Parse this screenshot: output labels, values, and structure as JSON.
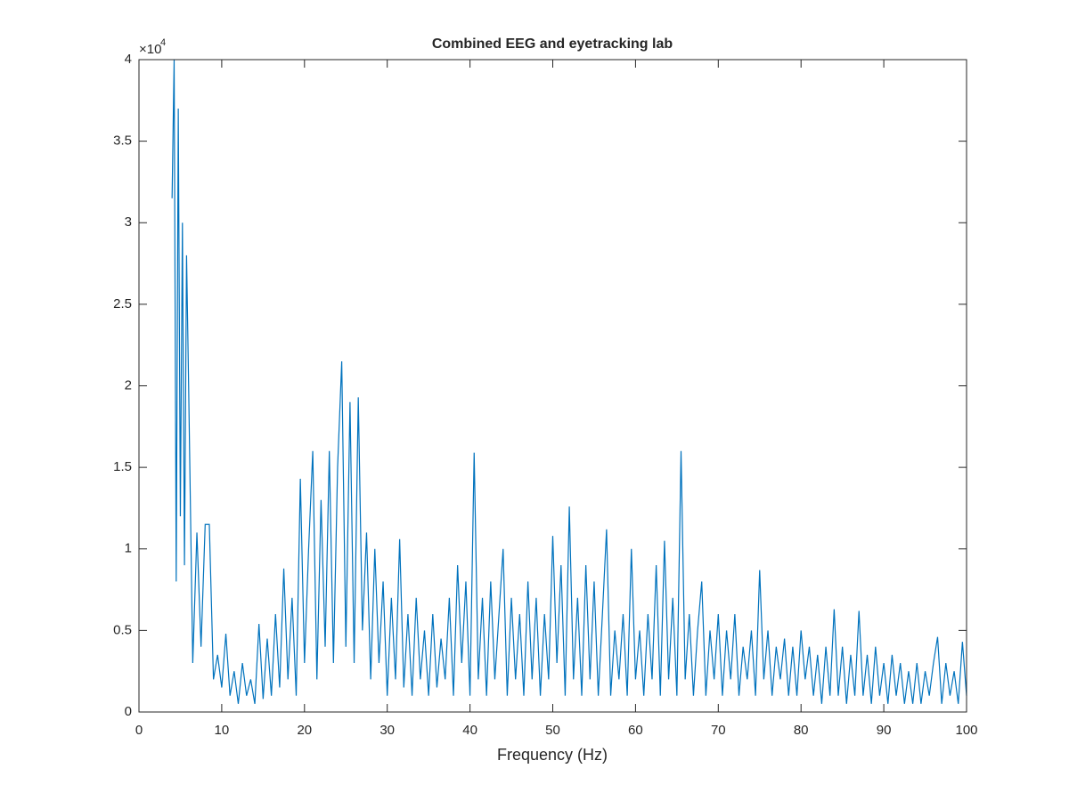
{
  "chart_data": {
    "type": "line",
    "title": "Combined EEG and eyetracking lab",
    "xlabel": "Frequency (Hz)",
    "y_multiplier": {
      "base": "×10",
      "exponent": "4"
    },
    "xlim": [
      0,
      100
    ],
    "xticks": [
      0,
      10,
      20,
      30,
      40,
      50,
      60,
      70,
      80,
      90,
      100
    ],
    "ylim": [
      0,
      4
    ],
    "yticks": [
      0,
      0.5,
      1,
      1.5,
      2,
      2.5,
      3,
      3.5,
      4
    ],
    "grid": false,
    "box": true,
    "x": [
      4,
      4.25,
      4.5,
      4.75,
      5,
      5.25,
      5.5,
      5.75,
      6,
      6.5,
      7,
      7.5,
      8,
      8.5,
      9,
      9.5,
      10,
      10.5,
      11,
      11.5,
      12,
      12.5,
      13,
      13.5,
      14,
      14.5,
      15,
      15.5,
      16,
      16.5,
      17,
      17.5,
      18,
      18.5,
      19,
      19.5,
      20,
      20.5,
      21,
      21.5,
      22,
      22.5,
      23,
      23.5,
      24,
      24.5,
      25,
      25.5,
      26,
      26.5,
      27,
      27.5,
      28,
      28.5,
      29,
      29.5,
      30,
      30.5,
      31,
      31.5,
      32,
      32.5,
      33,
      33.5,
      34,
      34.5,
      35,
      35.5,
      36,
      36.5,
      37,
      37.5,
      38,
      38.5,
      39,
      39.5,
      40,
      40.5,
      41,
      41.5,
      42,
      42.5,
      43,
      43.5,
      44,
      44.5,
      45,
      45.5,
      46,
      46.5,
      47,
      47.5,
      48,
      48.5,
      49,
      49.5,
      50,
      50.5,
      51,
      51.5,
      52,
      52.5,
      53,
      53.5,
      54,
      54.5,
      55,
      55.5,
      56,
      56.5,
      57,
      57.5,
      58,
      58.5,
      59,
      59.5,
      60,
      60.5,
      61,
      61.5,
      62,
      62.5,
      63,
      63.5,
      64,
      64.5,
      65,
      65.5,
      66,
      66.5,
      67,
      67.5,
      68,
      68.5,
      69,
      69.5,
      70,
      70.5,
      71,
      71.5,
      72,
      72.5,
      73,
      73.5,
      74,
      74.5,
      75,
      75.5,
      76,
      76.5,
      77,
      77.5,
      78,
      78.5,
      79,
      79.5,
      80,
      80.5,
      81,
      81.5,
      82,
      82.5,
      83,
      83.5,
      84,
      84.5,
      85,
      85.5,
      86,
      86.5,
      87,
      87.5,
      88,
      88.5,
      89,
      89.5,
      90,
      90.5,
      91,
      91.5,
      92,
      92.5,
      93,
      93.5,
      94,
      94.5,
      95,
      95.5,
      96,
      96.5,
      97,
      97.5,
      98,
      98.5,
      99,
      99.5,
      100
    ],
    "series": [
      {
        "color": "#0072bd",
        "values": [
          3.15,
          4.0,
          0.8,
          3.7,
          1.2,
          3.0,
          0.9,
          2.8,
          2.0,
          0.3,
          1.1,
          0.4,
          1.15,
          1.15,
          0.2,
          0.35,
          0.15,
          0.48,
          0.1,
          0.25,
          0.05,
          0.3,
          0.1,
          0.2,
          0.05,
          0.54,
          0.08,
          0.45,
          0.1,
          0.6,
          0.15,
          0.88,
          0.2,
          0.7,
          0.1,
          1.43,
          0.3,
          1.0,
          1.6,
          0.2,
          1.3,
          0.4,
          1.6,
          0.3,
          1.5,
          2.15,
          0.4,
          1.9,
          0.3,
          1.93,
          0.5,
          1.1,
          0.2,
          1.0,
          0.3,
          0.8,
          0.1,
          0.7,
          0.2,
          1.06,
          0.15,
          0.6,
          0.1,
          0.7,
          0.2,
          0.5,
          0.1,
          0.6,
          0.15,
          0.45,
          0.2,
          0.7,
          0.1,
          0.9,
          0.3,
          0.8,
          0.1,
          1.59,
          0.2,
          0.7,
          0.1,
          0.8,
          0.2,
          0.6,
          1.0,
          0.1,
          0.7,
          0.2,
          0.6,
          0.1,
          0.8,
          0.2,
          0.7,
          0.1,
          0.6,
          0.2,
          1.08,
          0.3,
          0.9,
          0.1,
          1.26,
          0.2,
          0.7,
          0.1,
          0.9,
          0.2,
          0.8,
          0.1,
          0.6,
          1.12,
          0.1,
          0.5,
          0.2,
          0.6,
          0.1,
          1.0,
          0.2,
          0.5,
          0.1,
          0.6,
          0.2,
          0.9,
          0.1,
          1.05,
          0.2,
          0.7,
          0.1,
          1.6,
          0.2,
          0.6,
          0.1,
          0.5,
          0.8,
          0.1,
          0.5,
          0.2,
          0.6,
          0.1,
          0.5,
          0.2,
          0.6,
          0.1,
          0.4,
          0.2,
          0.5,
          0.1,
          0.87,
          0.2,
          0.5,
          0.1,
          0.4,
          0.2,
          0.45,
          0.1,
          0.4,
          0.1,
          0.5,
          0.2,
          0.4,
          0.1,
          0.35,
          0.05,
          0.4,
          0.1,
          0.63,
          0.1,
          0.4,
          0.05,
          0.35,
          0.1,
          0.62,
          0.1,
          0.35,
          0.05,
          0.4,
          0.1,
          0.3,
          0.05,
          0.35,
          0.1,
          0.3,
          0.05,
          0.25,
          0.05,
          0.3,
          0.05,
          0.25,
          0.1,
          0.3,
          0.46,
          0.05,
          0.3,
          0.1,
          0.25,
          0.05,
          0.43,
          0.1
        ]
      }
    ]
  }
}
